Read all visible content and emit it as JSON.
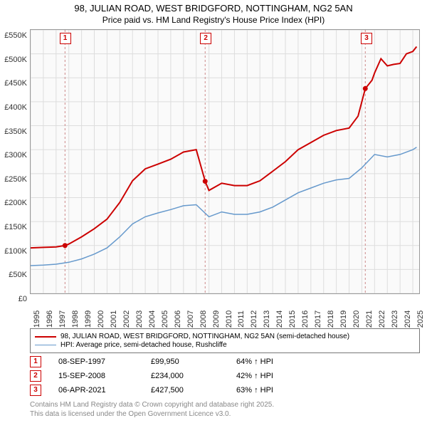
{
  "title": "98, JULIAN ROAD, WEST BRIDGFORD, NOTTINGHAM, NG2 5AN",
  "subtitle": "Price paid vs. HM Land Registry's House Price Index (HPI)",
  "chart": {
    "type": "line",
    "background_color": "#ffffff",
    "plot_background_color": "#fafafa",
    "grid_color": "#dddddd",
    "border_color": "#999999",
    "x_axis": {
      "min": 1995,
      "max": 2025.5,
      "ticks": [
        1995,
        1996,
        1997,
        1998,
        1999,
        2000,
        2001,
        2002,
        2003,
        2004,
        2005,
        2006,
        2007,
        2008,
        2009,
        2010,
        2011,
        2012,
        2013,
        2014,
        2015,
        2016,
        2017,
        2018,
        2019,
        2020,
        2021,
        2022,
        2023,
        2024,
        2025
      ],
      "label_fontsize": 11,
      "label_color": "#333333",
      "rotation": -90
    },
    "y_axis": {
      "min": 0,
      "max": 550000,
      "ticks": [
        0,
        50000,
        100000,
        150000,
        200000,
        250000,
        300000,
        350000,
        400000,
        450000,
        500000,
        550000
      ],
      "tick_labels": [
        "£0",
        "£50K",
        "£100K",
        "£150K",
        "£200K",
        "£250K",
        "£300K",
        "£350K",
        "£400K",
        "£450K",
        "£500K",
        "£550K"
      ],
      "label_fontsize": 11,
      "label_color": "#333333"
    },
    "markers": [
      {
        "n": 1,
        "x": 1997.7,
        "line_color": "#cc8888",
        "dash": "3,3"
      },
      {
        "n": 2,
        "x": 2008.7,
        "line_color": "#cc8888",
        "dash": "3,3"
      },
      {
        "n": 3,
        "x": 2021.27,
        "line_color": "#cc8888",
        "dash": "3,3"
      }
    ],
    "series": [
      {
        "name": "property",
        "color": "#cc0000",
        "width": 2,
        "data": [
          [
            1995,
            95000
          ],
          [
            1996,
            96000
          ],
          [
            1997,
            97000
          ],
          [
            1997.7,
            99950
          ],
          [
            1998,
            103000
          ],
          [
            1999,
            118000
          ],
          [
            2000,
            135000
          ],
          [
            2001,
            155000
          ],
          [
            2002,
            190000
          ],
          [
            2003,
            235000
          ],
          [
            2004,
            260000
          ],
          [
            2005,
            270000
          ],
          [
            2006,
            280000
          ],
          [
            2007,
            295000
          ],
          [
            2008,
            300000
          ],
          [
            2008.7,
            234000
          ],
          [
            2009,
            215000
          ],
          [
            2010,
            230000
          ],
          [
            2011,
            225000
          ],
          [
            2012,
            225000
          ],
          [
            2013,
            235000
          ],
          [
            2014,
            255000
          ],
          [
            2015,
            275000
          ],
          [
            2016,
            300000
          ],
          [
            2017,
            315000
          ],
          [
            2018,
            330000
          ],
          [
            2019,
            340000
          ],
          [
            2020,
            345000
          ],
          [
            2020.7,
            370000
          ],
          [
            2021.27,
            427500
          ],
          [
            2021.8,
            445000
          ],
          [
            2022,
            460000
          ],
          [
            2022.5,
            490000
          ],
          [
            2023,
            475000
          ],
          [
            2023.5,
            478000
          ],
          [
            2024,
            480000
          ],
          [
            2024.5,
            500000
          ],
          [
            2025,
            505000
          ],
          [
            2025.3,
            515000
          ]
        ]
      },
      {
        "name": "hpi",
        "color": "#6699cc",
        "width": 1.5,
        "data": [
          [
            1995,
            58000
          ],
          [
            1996,
            59000
          ],
          [
            1997,
            61000
          ],
          [
            1998,
            65000
          ],
          [
            1999,
            72000
          ],
          [
            2000,
            82000
          ],
          [
            2001,
            95000
          ],
          [
            2002,
            118000
          ],
          [
            2003,
            145000
          ],
          [
            2004,
            160000
          ],
          [
            2005,
            168000
          ],
          [
            2006,
            175000
          ],
          [
            2007,
            183000
          ],
          [
            2008,
            185000
          ],
          [
            2009,
            160000
          ],
          [
            2010,
            170000
          ],
          [
            2011,
            165000
          ],
          [
            2012,
            165000
          ],
          [
            2013,
            170000
          ],
          [
            2014,
            180000
          ],
          [
            2015,
            195000
          ],
          [
            2016,
            210000
          ],
          [
            2017,
            220000
          ],
          [
            2018,
            230000
          ],
          [
            2019,
            237000
          ],
          [
            2020,
            240000
          ],
          [
            2021,
            262000
          ],
          [
            2022,
            290000
          ],
          [
            2023,
            285000
          ],
          [
            2024,
            290000
          ],
          [
            2025,
            300000
          ],
          [
            2025.3,
            305000
          ]
        ]
      }
    ],
    "sale_points": [
      {
        "x": 1997.7,
        "y": 99950,
        "color": "#cc0000"
      },
      {
        "x": 2008.7,
        "y": 234000,
        "color": "#cc0000"
      },
      {
        "x": 2021.27,
        "y": 427500,
        "color": "#cc0000"
      }
    ]
  },
  "legend": {
    "border_color": "#777777",
    "items": [
      {
        "color": "#cc0000",
        "width": 2,
        "label": "98, JULIAN ROAD, WEST BRIDGFORD, NOTTINGHAM, NG2 5AN (semi-detached house)"
      },
      {
        "color": "#6699cc",
        "width": 1.5,
        "label": "HPI: Average price, semi-detached house, Rushcliffe"
      }
    ]
  },
  "sales": [
    {
      "n": "1",
      "date": "08-SEP-1997",
      "price": "£99,950",
      "hpi": "64% ↑ HPI"
    },
    {
      "n": "2",
      "date": "15-SEP-2008",
      "price": "£234,000",
      "hpi": "42% ↑ HPI"
    },
    {
      "n": "3",
      "date": "06-APR-2021",
      "price": "£427,500",
      "hpi": "63% ↑ HPI"
    }
  ],
  "footer": {
    "line1": "Contains HM Land Registry data © Crown copyright and database right 2025.",
    "line2": "This data is licensed under the Open Government Licence v3.0."
  }
}
